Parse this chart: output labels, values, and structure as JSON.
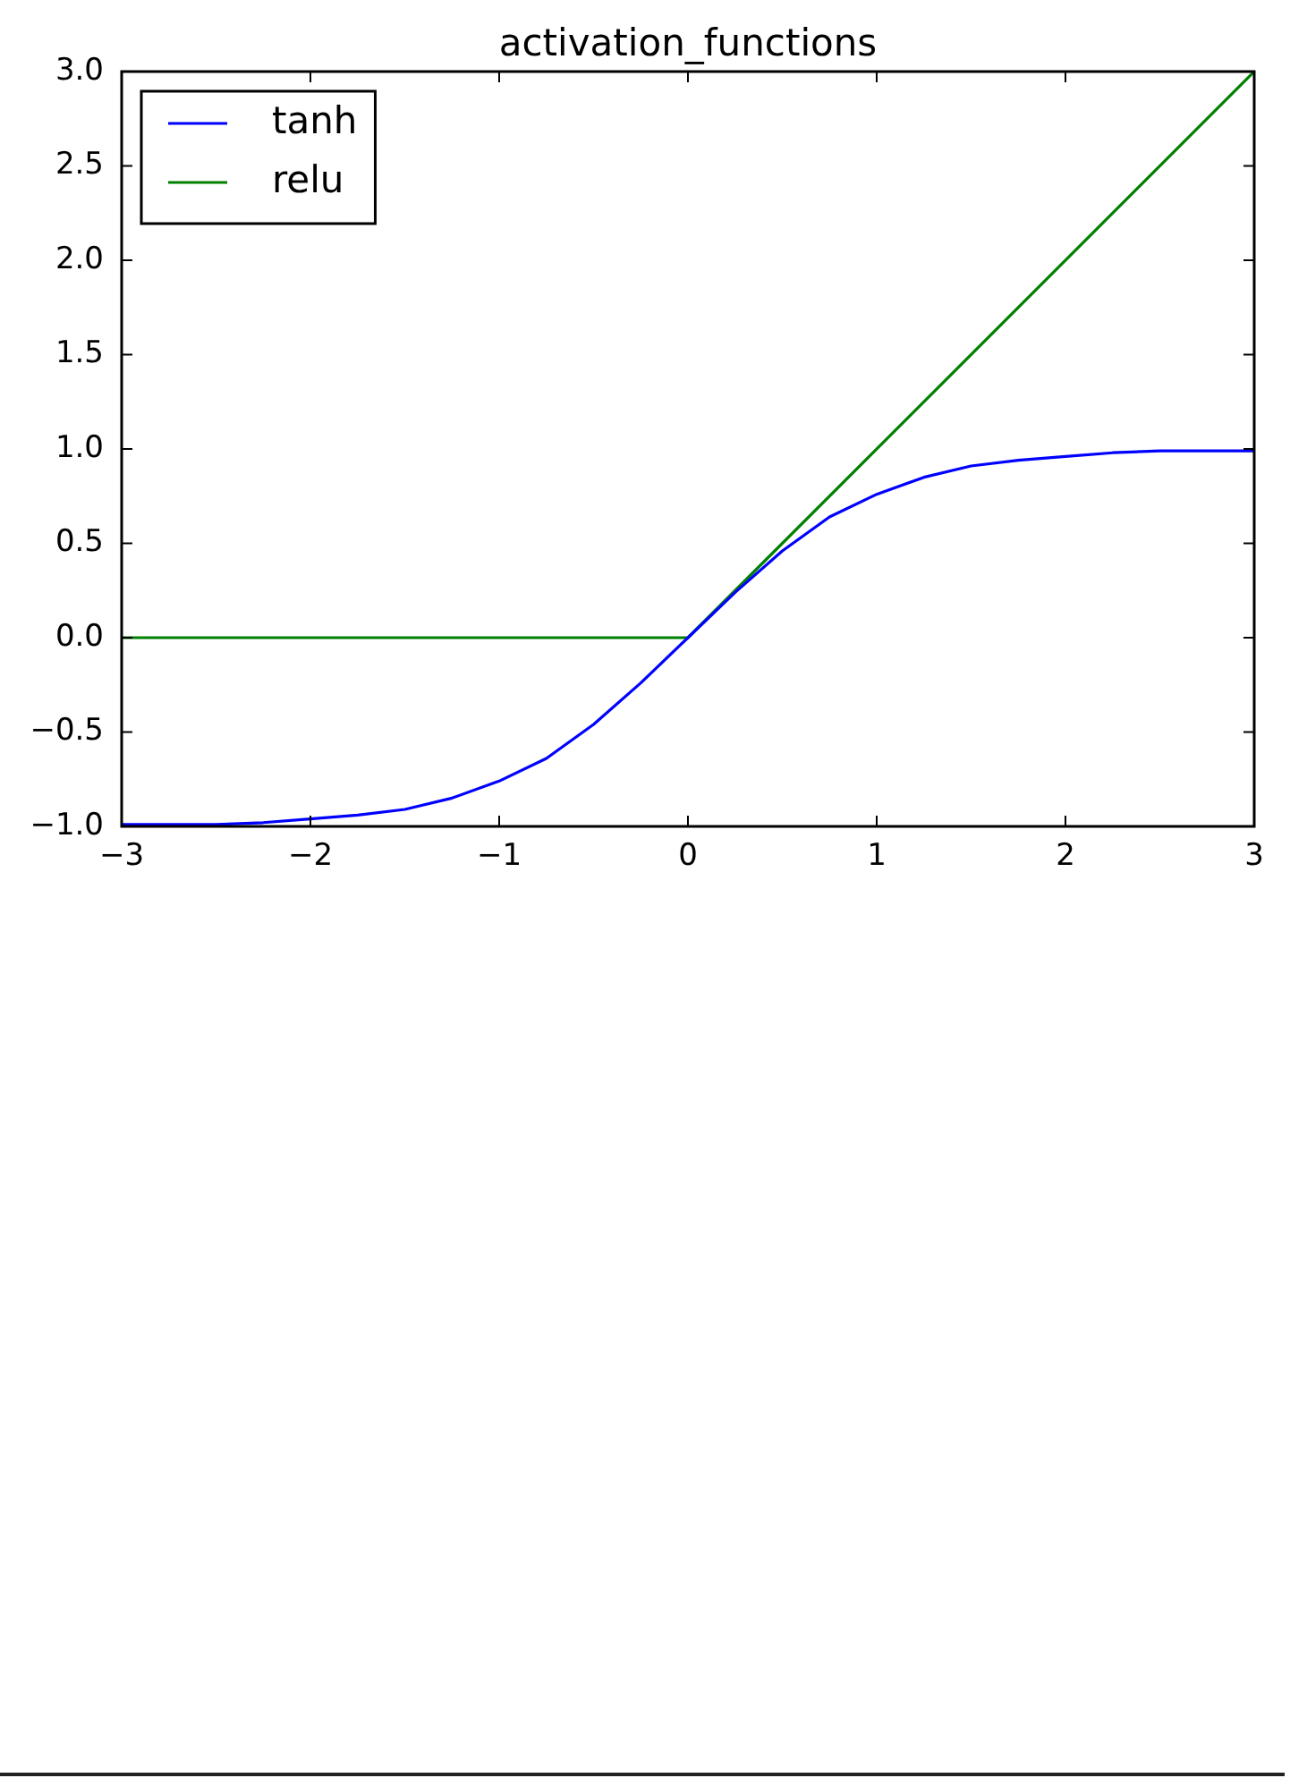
{
  "chart_data": {
    "type": "line",
    "title": "activation_functions",
    "series": [
      {
        "name": "tanh",
        "color": "#0000ff",
        "x": [
          -3,
          -2.75,
          -2.5,
          -2.25,
          -2,
          -1.75,
          -1.5,
          -1.25,
          -1,
          -0.75,
          -0.5,
          -0.25,
          0,
          0.25,
          0.5,
          0.75,
          1,
          1.25,
          1.5,
          1.75,
          2,
          2.25,
          2.5,
          2.75,
          3
        ],
        "values": [
          -0.99,
          -0.99,
          -0.99,
          -0.98,
          -0.96,
          -0.94,
          -0.91,
          -0.85,
          -0.76,
          -0.64,
          -0.46,
          -0.24,
          0,
          0.24,
          0.46,
          0.64,
          0.76,
          0.85,
          0.91,
          0.94,
          0.96,
          0.98,
          0.99,
          0.99,
          0.99
        ]
      },
      {
        "name": "relu",
        "color": "#008000",
        "x": [
          -3,
          0,
          3
        ],
        "values": [
          0,
          0,
          3
        ]
      }
    ],
    "xlim": [
      -3,
      3
    ],
    "xticks": [
      {
        "value": -3,
        "label": "−3"
      },
      {
        "value": -2,
        "label": "−2"
      },
      {
        "value": -1,
        "label": "−1"
      },
      0,
      1,
      2,
      3
    ],
    "ylim": [
      -1,
      3
    ],
    "yticks": [
      {
        "value": -1,
        "label": "−1.0"
      },
      {
        "value": -0.5,
        "label": "−0.5"
      },
      {
        "value": 0,
        "label": "0.0"
      },
      0.5,
      {
        "value": 1,
        "label": "1.0"
      },
      1.5,
      {
        "value": 2,
        "label": "2.0"
      },
      2.5,
      {
        "value": 3,
        "label": "3.0"
      }
    ],
    "legend": "top left",
    "line_style": "solid"
  }
}
